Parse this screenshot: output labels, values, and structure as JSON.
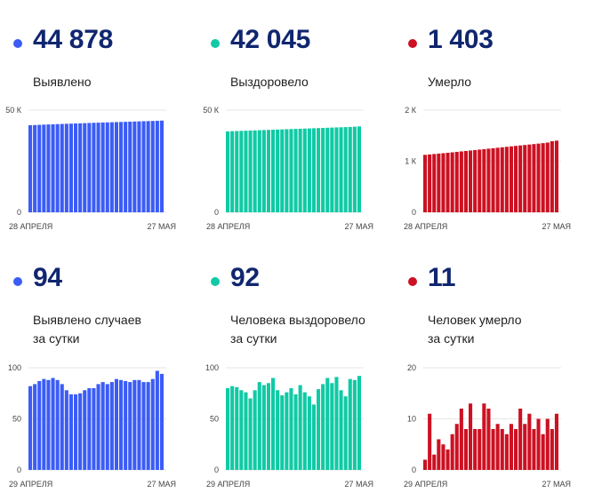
{
  "colors": {
    "blue": "#3b5cf6",
    "green": "#0fcaa5",
    "red": "#cc1122",
    "number": "#10266f",
    "grid": "#e6e6e6"
  },
  "panels": [
    {
      "dot_color": "#3b5cf6",
      "value": "44 878",
      "label_lines": [
        "Выявлено"
      ]
    },
    {
      "dot_color": "#0fcaa5",
      "value": "42 045",
      "label_lines": [
        "Выздоровело"
      ]
    },
    {
      "dot_color": "#cc1122",
      "value": "1 403",
      "label_lines": [
        "Умерло"
      ]
    },
    {
      "dot_color": "#3b5cf6",
      "value": "94",
      "label_lines": [
        "Выявлено случаев",
        "за сутки"
      ]
    },
    {
      "dot_color": "#0fcaa5",
      "value": "92",
      "label_lines": [
        "Человека выздоровело",
        "за сутки"
      ]
    },
    {
      "dot_color": "#cc1122",
      "value": "11",
      "label_lines": [
        "Человек умерло",
        "за сутки"
      ]
    }
  ],
  "chart_data": [
    {
      "type": "bar",
      "title": "Выявлено",
      "color": "#3b5cf6",
      "x_start_label": "28 АПРЕЛЯ",
      "x_end_label": "27 МАЯ",
      "yticks": [
        {
          "v": 0,
          "label": "0"
        },
        {
          "v": 50000,
          "label": "50 К"
        }
      ],
      "ylim": [
        0,
        50000
      ],
      "values": [
        42600,
        42700,
        42800,
        42900,
        43000,
        43080,
        43160,
        43240,
        43320,
        43400,
        43480,
        43560,
        43640,
        43720,
        43800,
        43870,
        43940,
        44010,
        44080,
        44150,
        44220,
        44290,
        44360,
        44430,
        44500,
        44570,
        44640,
        44710,
        44780,
        44878
      ]
    },
    {
      "type": "bar",
      "title": "Выздоровело",
      "color": "#0fcaa5",
      "x_start_label": "28 АПРЕЛЯ",
      "x_end_label": "27 МАЯ",
      "yticks": [
        {
          "v": 0,
          "label": "0"
        },
        {
          "v": 50000,
          "label": "50 К"
        }
      ],
      "ylim": [
        0,
        50000
      ],
      "values": [
        39600,
        39700,
        39780,
        39860,
        39940,
        40020,
        40100,
        40180,
        40260,
        40340,
        40420,
        40500,
        40580,
        40660,
        40740,
        40820,
        40900,
        40980,
        41060,
        41140,
        41220,
        41300,
        41380,
        41460,
        41540,
        41620,
        41700,
        41780,
        41900,
        42045
      ]
    },
    {
      "type": "bar",
      "title": "Умерло",
      "color": "#cc1122",
      "x_start_label": "28 АПРЕЛЯ",
      "x_end_label": "27 МАЯ",
      "yticks": [
        {
          "v": 0,
          "label": "0"
        },
        {
          "v": 1000,
          "label": "1 К"
        },
        {
          "v": 2000,
          "label": "2 К"
        }
      ],
      "ylim": [
        0,
        2000
      ],
      "values": [
        1125,
        1133,
        1141,
        1149,
        1157,
        1165,
        1174,
        1183,
        1192,
        1201,
        1210,
        1219,
        1228,
        1237,
        1246,
        1255,
        1264,
        1273,
        1282,
        1291,
        1300,
        1309,
        1318,
        1327,
        1336,
        1345,
        1354,
        1365,
        1392,
        1403
      ]
    },
    {
      "type": "bar",
      "title": "Выявлено случаев за сутки",
      "color": "#3b5cf6",
      "x_start_label": "29 АПРЕЛЯ",
      "x_end_label": "27 МАЯ",
      "yticks": [
        {
          "v": 0,
          "label": "0"
        },
        {
          "v": 50,
          "label": "50"
        },
        {
          "v": 100,
          "label": "100"
        }
      ],
      "ylim": [
        0,
        100
      ],
      "values": [
        82,
        84,
        87,
        89,
        88,
        90,
        88,
        84,
        78,
        74,
        74,
        75,
        78,
        80,
        80,
        84,
        86,
        84,
        86,
        89,
        88,
        87,
        86,
        88,
        88,
        86,
        86,
        89,
        97,
        94
      ]
    },
    {
      "type": "bar",
      "title": "Человека выздоровело за сутки",
      "color": "#0fcaa5",
      "x_start_label": "29 АПРЕЛЯ",
      "x_end_label": "27 МАЯ",
      "yticks": [
        {
          "v": 0,
          "label": "0"
        },
        {
          "v": 50,
          "label": "50"
        },
        {
          "v": 100,
          "label": "100"
        }
      ],
      "ylim": [
        0,
        100
      ],
      "values": [
        80,
        82,
        81,
        78,
        76,
        70,
        78,
        86,
        83,
        85,
        90,
        78,
        73,
        76,
        80,
        74,
        83,
        76,
        72,
        64,
        79,
        84,
        90,
        85,
        91,
        78,
        72,
        89,
        88,
        92
      ]
    },
    {
      "type": "bar",
      "title": "Человек умерло за сутки",
      "color": "#cc1122",
      "x_start_label": "29 АПРЕЛЯ",
      "x_end_label": "27 МАЯ",
      "yticks": [
        {
          "v": 0,
          "label": "0"
        },
        {
          "v": 10,
          "label": "10"
        },
        {
          "v": 20,
          "label": "20"
        }
      ],
      "ylim": [
        0,
        20
      ],
      "values": [
        2,
        11,
        3,
        6,
        5,
        4,
        7,
        9,
        12,
        8,
        13,
        8,
        8,
        13,
        12,
        8,
        9,
        8,
        7,
        9,
        8,
        12,
        9,
        11,
        8,
        10,
        7,
        10,
        8,
        11
      ]
    }
  ]
}
